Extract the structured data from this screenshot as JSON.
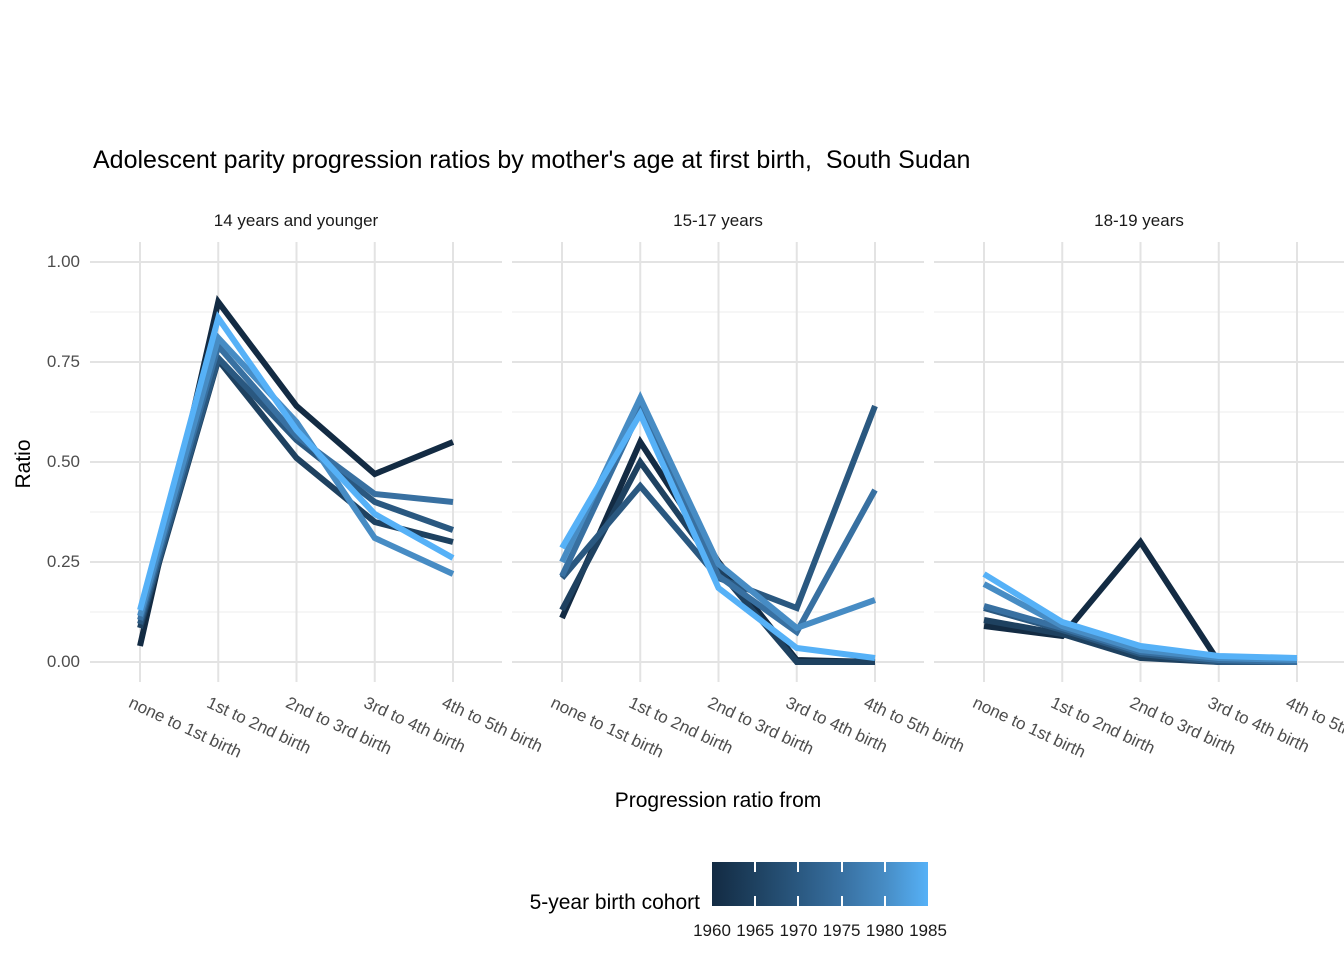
{
  "title": "Adolescent parity progression ratios by mother's age at first birth,  South Sudan",
  "y_axis": {
    "title": "Ratio",
    "tick_labels": [
      "1.00",
      "0.75",
      "0.50",
      "0.25",
      "0.00"
    ]
  },
  "x_axis": {
    "title": "Progression ratio from"
  },
  "legend": {
    "title": "5-year birth cohort",
    "tick_labels": [
      "1960",
      "1965",
      "1970",
      "1975",
      "1980",
      "1985"
    ],
    "gradient_stops": [
      "#132B43",
      "#1E4160",
      "#2A5880",
      "#3870A1",
      "#478CC4",
      "#56B1F7"
    ]
  },
  "chart_data": {
    "type": "line",
    "title": "Adolescent parity progression ratios by mother's age at first birth,  South Sudan",
    "xlabel": "Progression ratio from",
    "ylabel": "Ratio",
    "ylim": [
      0,
      1
    ],
    "yticks": [
      1.0,
      0.75,
      0.5,
      0.25,
      0.0
    ],
    "yticks_minor": [
      0.875,
      0.625,
      0.375,
      0.125
    ],
    "grid": true,
    "legend_position": "bottom",
    "color_scale": {
      "title": "5-year birth cohort",
      "min": 1960,
      "max": 1985,
      "colors": {
        "1960": "#132B43",
        "1965": "#1E4160",
        "1970": "#2A5880",
        "1975": "#3870A1",
        "1980": "#478CC4",
        "1985": "#56B1F7"
      }
    },
    "categories": [
      "none to 1st birth",
      "1st to 2nd birth",
      "2nd to 3rd birth",
      "3rd to 4th birth",
      "4th to 5th birth"
    ],
    "facets": [
      {
        "label": "14 years and younger",
        "series": [
          {
            "name": "1960",
            "values": [
              0.04,
              0.9,
              0.64,
              0.47,
              0.55
            ]
          },
          {
            "name": "1965",
            "values": [
              0.085,
              0.755,
              0.51,
              0.35,
              0.3
            ]
          },
          {
            "name": "1970",
            "values": [
              0.095,
              0.76,
              0.555,
              0.4,
              0.33
            ]
          },
          {
            "name": "1975",
            "values": [
              0.105,
              0.79,
              0.565,
              0.42,
              0.4
            ]
          },
          {
            "name": "1980",
            "values": [
              0.115,
              0.81,
              0.6,
              0.31,
              0.22
            ]
          },
          {
            "name": "1985",
            "values": [
              0.13,
              0.86,
              0.58,
              0.37,
              0.26
            ]
          }
        ]
      },
      {
        "label": "15-17 years",
        "series": [
          {
            "name": "1960",
            "values": [
              0.11,
              0.55,
              0.25,
              0.005,
              0.0
            ]
          },
          {
            "name": "1965",
            "values": [
              0.13,
              0.5,
              0.23,
              0.0,
              0.0
            ]
          },
          {
            "name": "1970",
            "values": [
              0.21,
              0.44,
              0.21,
              0.135,
              0.64
            ]
          },
          {
            "name": "1975",
            "values": [
              0.215,
              0.63,
              0.215,
              0.075,
              0.43
            ]
          },
          {
            "name": "1980",
            "values": [
              0.25,
              0.66,
              0.245,
              0.085,
              0.155
            ]
          },
          {
            "name": "1985",
            "values": [
              0.285,
              0.62,
              0.185,
              0.035,
              0.01
            ]
          }
        ]
      },
      {
        "label": "18-19 years",
        "series": [
          {
            "name": "1960",
            "values": [
              0.09,
              0.065,
              0.3,
              0.0,
              0.0
            ]
          },
          {
            "name": "1965",
            "values": [
              0.105,
              0.07,
              0.01,
              0.0,
              0.0
            ]
          },
          {
            "name": "1970",
            "values": [
              0.135,
              0.08,
              0.02,
              0.0,
              0.0
            ]
          },
          {
            "name": "1975",
            "values": [
              0.14,
              0.085,
              0.025,
              0.005,
              0.0
            ]
          },
          {
            "name": "1980",
            "values": [
              0.195,
              0.09,
              0.03,
              0.01,
              0.005
            ]
          },
          {
            "name": "1985",
            "values": [
              0.22,
              0.1,
              0.04,
              0.015,
              0.01
            ]
          }
        ]
      }
    ]
  }
}
